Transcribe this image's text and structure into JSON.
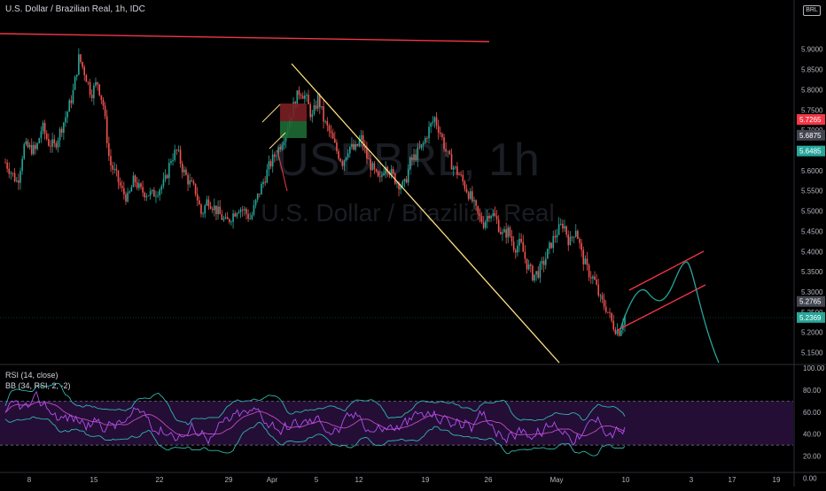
{
  "header": {
    "title": "U.S. Dollar / Brazilian Real, 1h, IDC",
    "currency_badge": "BRL"
  },
  "watermark": {
    "symbol": "USDBRL, 1h",
    "name": "U.S. Dollar / Brazilian Real"
  },
  "rsi_legend": {
    "line1": "RSI (14, close)",
    "line2": "BB (34, RSI, 2, -2)"
  },
  "colors": {
    "background": "#000000",
    "up_candle": "#26a69a",
    "down_candle": "#ef5350",
    "red_line": "#f23645",
    "yellow_line": "#ffe082",
    "green_projection": "#26a69a",
    "rsi_line": "#b050f0",
    "bb_line": "#2fb5ad",
    "rsi_band": "#2a1140"
  },
  "chart_data": [
    {
      "type": "candlestick",
      "title": "U.S. Dollar / Brazilian Real, 1h, IDC",
      "ylim": [
        5.125,
        6.0
      ],
      "y_ticks": [
        "5.9000",
        "5.8500",
        "5.8000",
        "5.7500",
        "5.7000",
        "5.6500",
        "5.6000",
        "5.5500",
        "5.5000",
        "5.4500",
        "5.4000",
        "5.3500",
        "5.3000",
        "5.2500",
        "5.2000",
        "5.1500"
      ],
      "x_ticks": [
        "8",
        "15",
        "22",
        "29",
        "Apr",
        "5",
        "12",
        "19",
        "26",
        "May",
        "10",
        "17",
        "19"
      ],
      "x_ticks_extra": [
        "3"
      ],
      "price_labels": [
        {
          "value": "5.7265",
          "color": "#f23645"
        },
        {
          "value": "5.6875",
          "color": "#434651"
        },
        {
          "value": "5.6485",
          "color": "#26a69a"
        },
        {
          "value": "5.2765",
          "color": "#434651"
        },
        {
          "value": "5.2369",
          "color": "#26a69a"
        }
      ],
      "close_path": [
        [
          0,
          5.62
        ],
        [
          2,
          5.57
        ],
        [
          3,
          5.66
        ],
        [
          5,
          5.65
        ],
        [
          6,
          5.71
        ],
        [
          7,
          5.67
        ],
        [
          8,
          5.66
        ],
        [
          9,
          5.7
        ],
        [
          10,
          5.74
        ],
        [
          11,
          5.79
        ],
        [
          12,
          5.88
        ],
        [
          13,
          5.84
        ],
        [
          14,
          5.79
        ],
        [
          15,
          5.82
        ],
        [
          16,
          5.76
        ],
        [
          17,
          5.62
        ],
        [
          18,
          5.59
        ],
        [
          19,
          5.55
        ],
        [
          20,
          5.53
        ],
        [
          21,
          5.58
        ],
        [
          22,
          5.55
        ],
        [
          24,
          5.54
        ],
        [
          26,
          5.57
        ],
        [
          27,
          5.63
        ],
        [
          28,
          5.65
        ],
        [
          29,
          5.6
        ],
        [
          30,
          5.57
        ],
        [
          31,
          5.55
        ],
        [
          32,
          5.49
        ],
        [
          33,
          5.53
        ],
        [
          34,
          5.51
        ],
        [
          35,
          5.49
        ],
        [
          36,
          5.47
        ],
        [
          37,
          5.49
        ],
        [
          38,
          5.51
        ],
        [
          39,
          5.5
        ],
        [
          40,
          5.48
        ],
        [
          41,
          5.53
        ],
        [
          42,
          5.57
        ],
        [
          43,
          5.61
        ],
        [
          44,
          5.64
        ],
        [
          45,
          5.67
        ],
        [
          46,
          5.71
        ],
        [
          47,
          5.76
        ],
        [
          48,
          5.8
        ],
        [
          49,
          5.78
        ],
        [
          50,
          5.73
        ],
        [
          51,
          5.78
        ],
        [
          52,
          5.72
        ],
        [
          53,
          5.69
        ],
        [
          54,
          5.65
        ],
        [
          55,
          5.62
        ],
        [
          56,
          5.66
        ],
        [
          57,
          5.65
        ],
        [
          58,
          5.68
        ],
        [
          59,
          5.63
        ],
        [
          60,
          5.6
        ],
        [
          61,
          5.57
        ],
        [
          62,
          5.62
        ],
        [
          63,
          5.59
        ],
        [
          64,
          5.57
        ],
        [
          65,
          5.56
        ],
        [
          66,
          5.62
        ],
        [
          67,
          5.64
        ],
        [
          68,
          5.66
        ],
        [
          69,
          5.7
        ],
        [
          70,
          5.73
        ],
        [
          71,
          5.69
        ],
        [
          72,
          5.64
        ],
        [
          73,
          5.61
        ],
        [
          74,
          5.59
        ],
        [
          75,
          5.56
        ],
        [
          76,
          5.53
        ],
        [
          77,
          5.49
        ],
        [
          78,
          5.47
        ],
        [
          79,
          5.5
        ],
        [
          80,
          5.48
        ],
        [
          81,
          5.44
        ],
        [
          82,
          5.45
        ],
        [
          83,
          5.41
        ],
        [
          84,
          5.42
        ],
        [
          85,
          5.37
        ],
        [
          86,
          5.34
        ],
        [
          87,
          5.35
        ],
        [
          88,
          5.38
        ],
        [
          89,
          5.42
        ],
        [
          90,
          5.45
        ],
        [
          91,
          5.47
        ],
        [
          92,
          5.42
        ],
        [
          93,
          5.46
        ],
        [
          94,
          5.39
        ],
        [
          95,
          5.35
        ],
        [
          96,
          5.33
        ],
        [
          97,
          5.28
        ],
        [
          98,
          5.26
        ],
        [
          99,
          5.22
        ],
        [
          100,
          5.2
        ],
        [
          101,
          5.24
        ]
      ]
    },
    {
      "type": "line",
      "title": "RSI (14, close)",
      "ylim": [
        10,
        100
      ],
      "y_ticks": [
        "100.00",
        "80.00",
        "60.00",
        "40.00",
        "20.00",
        "0.00"
      ],
      "band": [
        30,
        70
      ]
    }
  ]
}
